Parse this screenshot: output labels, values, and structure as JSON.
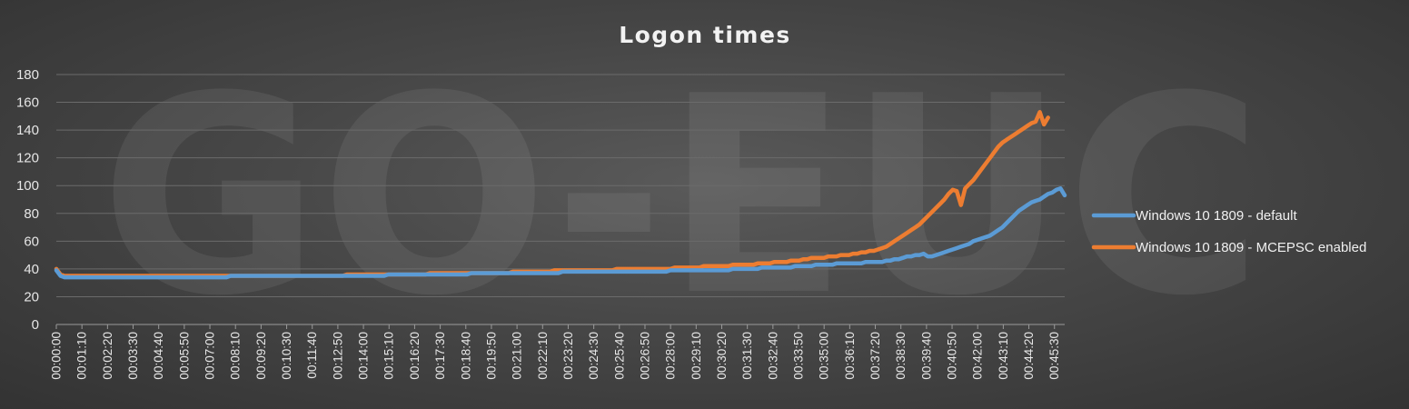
{
  "chart_data": {
    "type": "line",
    "title": "Logon times",
    "watermark": "GO-EUC",
    "xlabel": "",
    "ylabel": "",
    "ylim": [
      0,
      180
    ],
    "yticks": [
      0,
      20,
      40,
      60,
      80,
      100,
      120,
      140,
      160,
      180
    ],
    "grid": true,
    "legend_position": "right",
    "x_tick_labels": [
      "00:00:00",
      "00:01:10",
      "00:02:20",
      "00:03:30",
      "00:04:40",
      "00:05:50",
      "00:07:00",
      "00:08:10",
      "00:09:20",
      "00:10:30",
      "00:11:40",
      "00:12:50",
      "00:14:00",
      "00:15:10",
      "00:16:20",
      "00:17:30",
      "00:18:40",
      "00:19:50",
      "00:21:00",
      "00:22:10",
      "00:23:20",
      "00:24:30",
      "00:25:40",
      "00:26:50",
      "00:28:00",
      "00:29:10",
      "00:30:20",
      "00:31:30",
      "00:32:40",
      "00:33:50",
      "00:35:00",
      "00:36:10",
      "00:37:20",
      "00:38:30",
      "00:39:40",
      "00:40:50",
      "00:42:00",
      "00:43:10",
      "00:44:20",
      "00:45:30"
    ],
    "series": [
      {
        "name": "Windows 10 1809 - default",
        "color": "#5b9bd5",
        "values": [
          39,
          35,
          34,
          34,
          34,
          34,
          34,
          34,
          34,
          34,
          34,
          34,
          34,
          34,
          34,
          34,
          34,
          34,
          34,
          34,
          34,
          34,
          34,
          34,
          34,
          34,
          34,
          34,
          34,
          34,
          34,
          34,
          34,
          34,
          34,
          34,
          34,
          34,
          34,
          34,
          34,
          34,
          35,
          35,
          35,
          35,
          35,
          35,
          35,
          35,
          35,
          35,
          35,
          35,
          35,
          35,
          35,
          35,
          35,
          35,
          35,
          35,
          35,
          35,
          35,
          35,
          35,
          35,
          35,
          35,
          35,
          35,
          35,
          35,
          35,
          35,
          35,
          35,
          35,
          35,
          36,
          36,
          36,
          36,
          36,
          36,
          36,
          36,
          36,
          36,
          36,
          36,
          36,
          36,
          36,
          36,
          36,
          36,
          36,
          36,
          37,
          37,
          37,
          37,
          37,
          37,
          37,
          37,
          37,
          37,
          37,
          37,
          37,
          37,
          37,
          37,
          37,
          37,
          37,
          37,
          37,
          37,
          38,
          38,
          38,
          38,
          38,
          38,
          38,
          38,
          38,
          38,
          38,
          38,
          38,
          38,
          38,
          38,
          38,
          38,
          38,
          38,
          38,
          38,
          38,
          38,
          38,
          38,
          39,
          39,
          39,
          39,
          39,
          39,
          39,
          39,
          39,
          39,
          39,
          39,
          39,
          39,
          39,
          40,
          40,
          40,
          40,
          40,
          40,
          40,
          41,
          41,
          41,
          41,
          41,
          41,
          41,
          41,
          42,
          42,
          42,
          42,
          42,
          43,
          43,
          43,
          43,
          43,
          44,
          44,
          44,
          44,
          44,
          44,
          44,
          45,
          45,
          45,
          45,
          45,
          46,
          46,
          47,
          47,
          48,
          49,
          49,
          50,
          50,
          51,
          49,
          49,
          50,
          51,
          52,
          53,
          54,
          55,
          56,
          57,
          58,
          60,
          61,
          62,
          63,
          64,
          66,
          68,
          70,
          73,
          76,
          79,
          82,
          84,
          86,
          88,
          89,
          90,
          92,
          94,
          95,
          97,
          98,
          93
        ]
      },
      {
        "name": "Windows 10 1809 - MCEPSC enabled",
        "color": "#ed7d31",
        "values": [
          40,
          36,
          35,
          35,
          35,
          35,
          35,
          35,
          35,
          35,
          35,
          35,
          35,
          35,
          35,
          35,
          35,
          35,
          35,
          35,
          35,
          35,
          35,
          35,
          35,
          35,
          35,
          35,
          35,
          35,
          35,
          35,
          35,
          35,
          35,
          35,
          35,
          35,
          35,
          35,
          35,
          35,
          35,
          35,
          35,
          35,
          35,
          35,
          35,
          35,
          35,
          35,
          35,
          35,
          35,
          35,
          35,
          35,
          35,
          35,
          35,
          35,
          35,
          35,
          35,
          35,
          35,
          35,
          35,
          35,
          36,
          36,
          36,
          36,
          36,
          36,
          36,
          36,
          36,
          36,
          36,
          36,
          36,
          36,
          36,
          36,
          36,
          36,
          36,
          36,
          37,
          37,
          37,
          37,
          37,
          37,
          37,
          37,
          37,
          37,
          37,
          37,
          37,
          37,
          37,
          37,
          37,
          37,
          37,
          37,
          38,
          38,
          38,
          38,
          38,
          38,
          38,
          38,
          38,
          38,
          39,
          39,
          39,
          39,
          39,
          39,
          39,
          39,
          39,
          39,
          39,
          39,
          39,
          39,
          39,
          40,
          40,
          40,
          40,
          40,
          40,
          40,
          40,
          40,
          40,
          40,
          40,
          40,
          40,
          41,
          41,
          41,
          41,
          41,
          41,
          41,
          42,
          42,
          42,
          42,
          42,
          42,
          42,
          43,
          43,
          43,
          43,
          43,
          43,
          44,
          44,
          44,
          44,
          45,
          45,
          45,
          45,
          46,
          46,
          46,
          47,
          47,
          48,
          48,
          48,
          48,
          49,
          49,
          49,
          50,
          50,
          50,
          51,
          51,
          52,
          52,
          53,
          53,
          54,
          55,
          56,
          58,
          60,
          62,
          64,
          66,
          68,
          70,
          72,
          75,
          78,
          81,
          84,
          87,
          90,
          94,
          97,
          96,
          86,
          98,
          101,
          104,
          108,
          112,
          116,
          120,
          124,
          128,
          131,
          133,
          135,
          137,
          139,
          141,
          143,
          145,
          146,
          153,
          144,
          149
        ]
      }
    ]
  }
}
